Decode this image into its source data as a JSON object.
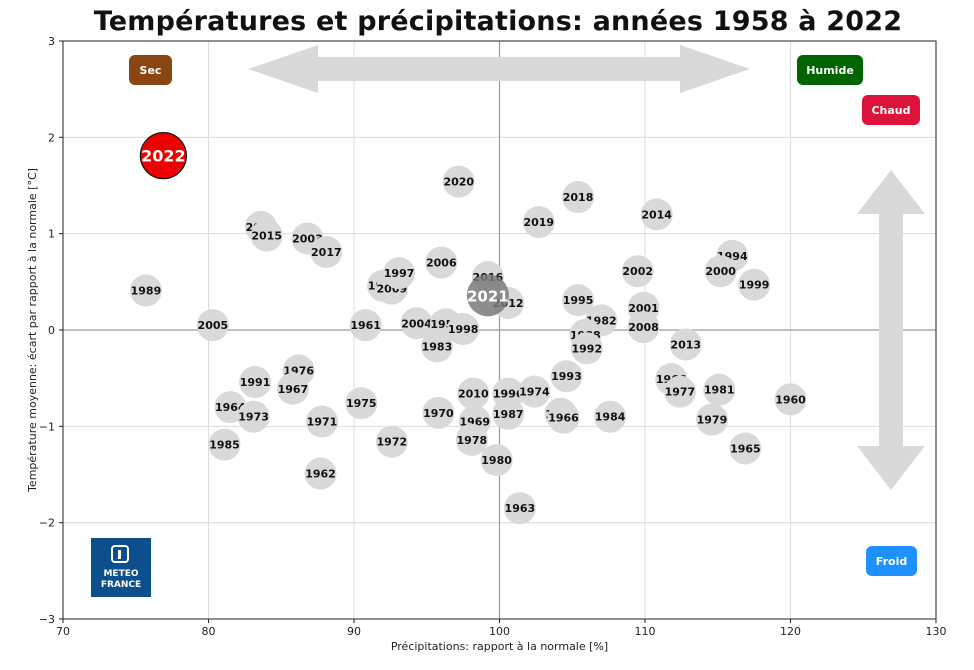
{
  "chart_data": {
    "type": "scatter",
    "title": "Températures et précipitations: années 1958 à 2022",
    "xlabel": "Précipitations: rapport à la normale [%]",
    "ylabel": "Température moyenne: écart par rapport à la normale [°C]",
    "xlim": [
      70,
      130
    ],
    "ylim": [
      -3,
      3
    ],
    "xticks": [
      "70",
      "80",
      "90",
      "100",
      "110",
      "120",
      "130"
    ],
    "yticks": [
      "−3",
      "−2",
      "−1",
      "0",
      "1",
      "2",
      "3"
    ],
    "grid": true,
    "quadrant_labels": {
      "dry": "Sec",
      "wet": "Humide",
      "hot": "Chaud",
      "cold": "Froid"
    },
    "logo_text": [
      "METEO",
      "FRANCE"
    ],
    "colors": {
      "point": "#d9d9d9",
      "highlight_2022": "#ee0000",
      "highlight_2021": "#7a7a7a",
      "dry": "#8b4513",
      "wet": "#006400",
      "hot": "#dc143c",
      "cold": "#1e90ff",
      "logo": "#0d4e8c",
      "arrow": "#d9d9d9"
    },
    "points": [
      {
        "label": "1989",
        "x": 75.7,
        "y": 0.41
      },
      {
        "label": "2005",
        "x": 80.3,
        "y": 0.05
      },
      {
        "label": "2011",
        "x": 83.6,
        "y": 1.07
      },
      {
        "label": "2015",
        "x": 84.0,
        "y": 0.98
      },
      {
        "label": "2003",
        "x": 86.8,
        "y": 0.95
      },
      {
        "label": "2017",
        "x": 88.1,
        "y": 0.81
      },
      {
        "label": "1961",
        "x": 90.8,
        "y": 0.05
      },
      {
        "label": "1990",
        "x": 92.0,
        "y": 0.46
      },
      {
        "label": "2009",
        "x": 92.6,
        "y": 0.43
      },
      {
        "label": "1997",
        "x": 93.1,
        "y": 0.59
      },
      {
        "label": "2004",
        "x": 94.3,
        "y": 0.07
      },
      {
        "label": "1983",
        "x": 95.7,
        "y": -0.17
      },
      {
        "label": "2006",
        "x": 96.0,
        "y": 0.7
      },
      {
        "label": "1959",
        "x": 96.3,
        "y": 0.06
      },
      {
        "label": "1998",
        "x": 97.5,
        "y": 0.01
      },
      {
        "label": "2020",
        "x": 97.2,
        "y": 1.54
      },
      {
        "label": "2016",
        "x": 99.2,
        "y": 0.55
      },
      {
        "label": "2012",
        "x": 100.6,
        "y": 0.28
      },
      {
        "label": "2019",
        "x": 102.7,
        "y": 1.12
      },
      {
        "label": "2018",
        "x": 105.4,
        "y": 1.38
      },
      {
        "label": "1995",
        "x": 105.4,
        "y": 0.31
      },
      {
        "label": "1982",
        "x": 107.0,
        "y": 0.1
      },
      {
        "label": "1988",
        "x": 105.9,
        "y": -0.05
      },
      {
        "label": "1992",
        "x": 106.0,
        "y": -0.19
      },
      {
        "label": "2014",
        "x": 110.8,
        "y": 1.2
      },
      {
        "label": "2002",
        "x": 109.5,
        "y": 0.61
      },
      {
        "label": "2001",
        "x": 109.9,
        "y": 0.23
      },
      {
        "label": "2008",
        "x": 109.9,
        "y": 0.03
      },
      {
        "label": "2013",
        "x": 112.8,
        "y": -0.15
      },
      {
        "label": "1994",
        "x": 116.0,
        "y": 0.77
      },
      {
        "label": "2000",
        "x": 115.2,
        "y": 0.61
      },
      {
        "label": "1999",
        "x": 117.5,
        "y": 0.47
      },
      {
        "label": "1976",
        "x": 86.2,
        "y": -0.42
      },
      {
        "label": "1991",
        "x": 83.2,
        "y": -0.54
      },
      {
        "label": "1967",
        "x": 85.8,
        "y": -0.61
      },
      {
        "label": "1964",
        "x": 81.5,
        "y": -0.8
      },
      {
        "label": "1973",
        "x": 83.1,
        "y": -0.9
      },
      {
        "label": "1985",
        "x": 81.1,
        "y": -1.19
      },
      {
        "label": "1971",
        "x": 87.8,
        "y": -0.95
      },
      {
        "label": "1962",
        "x": 87.7,
        "y": -1.49
      },
      {
        "label": "1975",
        "x": 90.5,
        "y": -0.76
      },
      {
        "label": "1972",
        "x": 92.6,
        "y": -1.16
      },
      {
        "label": "1970",
        "x": 95.8,
        "y": -0.86
      },
      {
        "label": "2010",
        "x": 98.2,
        "y": -0.66
      },
      {
        "label": "1969",
        "x": 98.3,
        "y": -0.95
      },
      {
        "label": "1978",
        "x": 98.1,
        "y": -1.14
      },
      {
        "label": "1980",
        "x": 99.8,
        "y": -1.35
      },
      {
        "label": "1963",
        "x": 101.4,
        "y": -1.85
      },
      {
        "label": "1996",
        "x": 100.6,
        "y": -0.66
      },
      {
        "label": "1987",
        "x": 100.6,
        "y": -0.87
      },
      {
        "label": "1974",
        "x": 102.4,
        "y": -0.64
      },
      {
        "label": "1993",
        "x": 104.6,
        "y": -0.48
      },
      {
        "label": "1986",
        "x": 104.2,
        "y": -0.87
      },
      {
        "label": "1966",
        "x": 104.4,
        "y": -0.91
      },
      {
        "label": "1984",
        "x": 107.6,
        "y": -0.9
      },
      {
        "label": "1966",
        "x": 111.8,
        "y": -0.51
      },
      {
        "label": "1977",
        "x": 112.4,
        "y": -0.64
      },
      {
        "label": "1981",
        "x": 115.1,
        "y": -0.62
      },
      {
        "label": "1979",
        "x": 114.6,
        "y": -0.93
      },
      {
        "label": "1965",
        "x": 116.9,
        "y": -1.23
      },
      {
        "label": "1960",
        "x": 120.0,
        "y": -0.72
      }
    ],
    "highlights": [
      {
        "label": "2022",
        "x": 76.9,
        "y": 1.81
      },
      {
        "label": "2021",
        "x": 99.2,
        "y": 0.36
      }
    ]
  }
}
